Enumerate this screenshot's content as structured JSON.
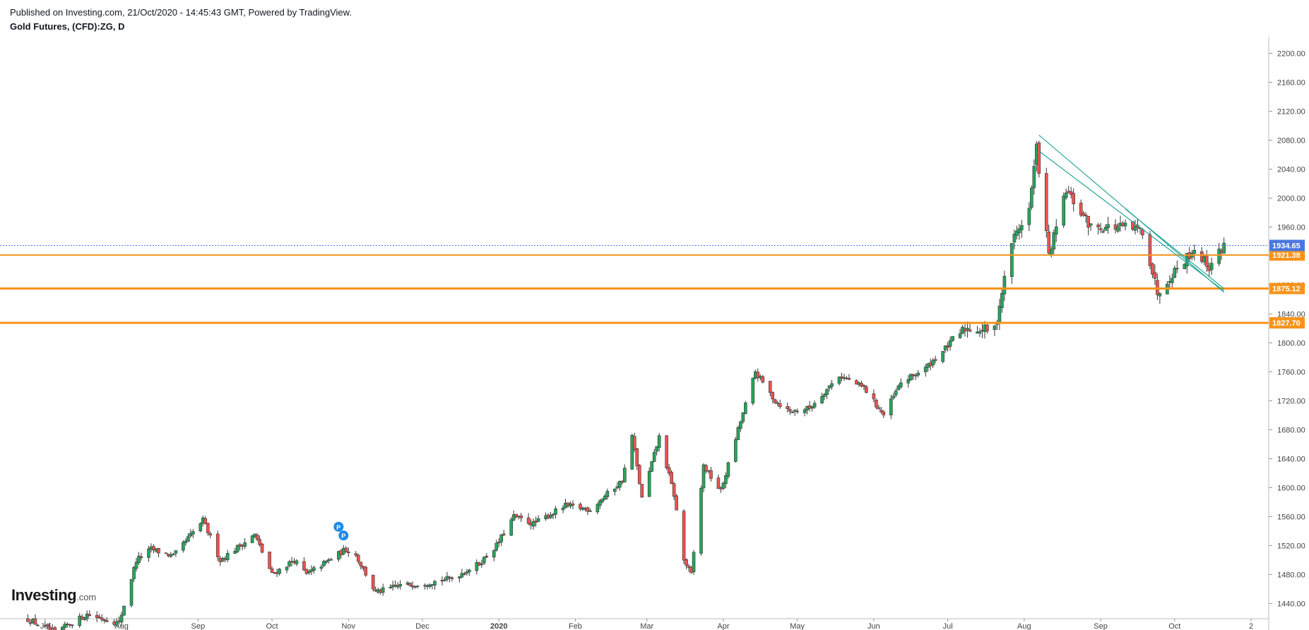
{
  "header": {
    "published": "Published on Investing.com, 21/Oct/2020 - 14:45:43 GMT, Powered by TradingView.",
    "title": "Gold Futures, (CFD):ZG, D"
  },
  "logo": {
    "text": "Investing",
    "suffix": ".com"
  },
  "colors": {
    "up": "#26a65b",
    "down": "#ef5350",
    "hline": "#f7931a",
    "trendline": "#26a69a",
    "current_price": "#4a77e0",
    "axis_text": "#444444"
  },
  "chart_data": {
    "type": "candlestick",
    "title": "Gold Futures, (CFD):ZG, D",
    "ylim": [
      1420,
      2220
    ],
    "y_ticks": [
      1440,
      1480,
      1520,
      1560,
      1600,
      1640,
      1680,
      1720,
      1760,
      1800,
      1840,
      1880,
      1920,
      1960,
      2000,
      2040,
      2080,
      2120,
      2160,
      2200
    ],
    "y_tick_labels": [
      "1440.00",
      "1480.00",
      "1520.00",
      "1560.00",
      "1600.00",
      "1640.00",
      "1680.00",
      "1720.00",
      "1760.00",
      "1800.00",
      "1840.00",
      "1880.00",
      "1920.00",
      "1960.00",
      "2000.00",
      "2040.00",
      "2080.00",
      "2120.00",
      "2160.00",
      "2200.00"
    ],
    "x_labels": [
      {
        "label": "Jul",
        "date": "2019-07-01"
      },
      {
        "label": "Aug",
        "date": "2019-08-01"
      },
      {
        "label": "Sep",
        "date": "2019-09-01"
      },
      {
        "label": "Oct",
        "date": "2019-10-01"
      },
      {
        "label": "Nov",
        "date": "2019-11-01"
      },
      {
        "label": "Dec",
        "date": "2019-12-01"
      },
      {
        "label": "2020",
        "date": "2020-01-01"
      },
      {
        "label": "Feb",
        "date": "2020-02-01"
      },
      {
        "label": "Mar",
        "date": "2020-03-01"
      },
      {
        "label": "Apr",
        "date": "2020-04-01"
      },
      {
        "label": "May",
        "date": "2020-05-01"
      },
      {
        "label": "Jun",
        "date": "2020-06-01"
      },
      {
        "label": "Jul",
        "date": "2020-07-01"
      },
      {
        "label": "Aug",
        "date": "2020-08-01"
      },
      {
        "label": "Sep",
        "date": "2020-09-01"
      },
      {
        "label": "Oct",
        "date": "2020-10-01"
      },
      {
        "label": "2",
        "date": "2020-11-01"
      }
    ],
    "close_path": [
      [
        "2019-06-24",
        1418
      ],
      [
        "2019-07-05",
        1400
      ],
      [
        "2019-07-18",
        1425
      ],
      [
        "2019-07-31",
        1413
      ],
      [
        "2019-08-07",
        1500
      ],
      [
        "2019-08-13",
        1515
      ],
      [
        "2019-08-22",
        1505
      ],
      [
        "2019-09-03",
        1555
      ],
      [
        "2019-09-10",
        1500
      ],
      [
        "2019-09-24",
        1535
      ],
      [
        "2019-10-01",
        1480
      ],
      [
        "2019-10-10",
        1500
      ],
      [
        "2019-10-15",
        1480
      ],
      [
        "2019-10-31",
        1515
      ],
      [
        "2019-11-04",
        1507
      ],
      [
        "2019-11-12",
        1455
      ],
      [
        "2019-11-22",
        1465
      ],
      [
        "2019-12-02",
        1468
      ],
      [
        "2019-12-13",
        1475
      ],
      [
        "2019-12-24",
        1495
      ],
      [
        "2019-12-31",
        1520
      ],
      [
        "2020-01-07",
        1560
      ],
      [
        "2020-01-15",
        1550
      ],
      [
        "2020-01-28",
        1575
      ],
      [
        "2020-02-07",
        1570
      ],
      [
        "2020-02-20",
        1610
      ],
      [
        "2020-02-24",
        1672
      ],
      [
        "2020-02-28",
        1585
      ],
      [
        "2020-03-06",
        1670
      ],
      [
        "2020-03-12",
        1590
      ],
      [
        "2020-03-16",
        1500
      ],
      [
        "2020-03-19",
        1480
      ],
      [
        "2020-03-24",
        1630
      ],
      [
        "2020-03-31",
        1595
      ],
      [
        "2020-04-07",
        1680
      ],
      [
        "2020-04-14",
        1760
      ],
      [
        "2020-04-22",
        1720
      ],
      [
        "2020-04-28",
        1705
      ],
      [
        "2020-05-06",
        1710
      ],
      [
        "2020-05-18",
        1755
      ],
      [
        "2020-05-28",
        1738
      ],
      [
        "2020-06-05",
        1700
      ],
      [
        "2020-06-12",
        1745
      ],
      [
        "2020-06-22",
        1765
      ],
      [
        "2020-07-08",
        1820
      ],
      [
        "2020-07-20",
        1818
      ],
      [
        "2020-07-27",
        1940
      ],
      [
        "2020-08-03",
        1985
      ],
      [
        "2020-08-06",
        2070
      ],
      [
        "2020-08-11",
        1920
      ],
      [
        "2020-08-18",
        2010
      ],
      [
        "2020-08-28",
        1960
      ],
      [
        "2020-09-10",
        1960
      ],
      [
        "2020-09-18",
        1955
      ],
      [
        "2020-09-24",
        1870
      ],
      [
        "2020-10-01",
        1900
      ],
      [
        "2020-10-09",
        1930
      ],
      [
        "2020-10-15",
        1905
      ],
      [
        "2020-10-21",
        1934.65
      ]
    ],
    "current_price": 1934.65,
    "current_price_label": "1934.65",
    "horizontal_levels": [
      {
        "value": 1921.38,
        "label": "1921.38"
      },
      {
        "value": 1875.12,
        "label": "1875.12"
      },
      {
        "value": 1827.7,
        "label": "1827.70"
      }
    ],
    "trendlines": [
      {
        "from": [
          "2020-08-07",
          2087
        ],
        "to": [
          "2020-10-21",
          1870
        ]
      },
      {
        "from": [
          "2020-08-07",
          2065
        ],
        "to": [
          "2020-10-21",
          1872
        ]
      },
      {
        "from": [
          "2020-09-11",
          1985
        ],
        "to": [
          "2020-10-21",
          1875
        ]
      }
    ],
    "markers": [
      {
        "date": "2019-10-28",
        "price": 1546,
        "label": "P"
      },
      {
        "date": "2019-10-30",
        "price": 1534,
        "label": "P"
      }
    ],
    "grid": false,
    "legend": "none"
  }
}
